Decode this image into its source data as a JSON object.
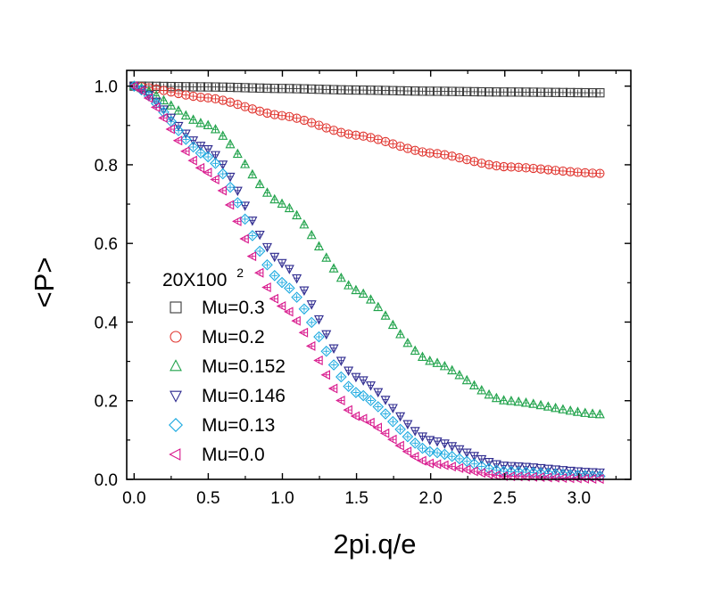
{
  "chart_data": {
    "type": "scatter",
    "title": "",
    "xlabel": "2pi.q/e",
    "ylabel": "<P>",
    "xlim": [
      -0.05,
      3.35
    ],
    "ylim": [
      0.0,
      1.04
    ],
    "x_ticks": [
      0.0,
      0.5,
      1.0,
      1.5,
      2.0,
      2.5,
      3.0
    ],
    "x_tick_labels": [
      "0.0",
      "0.5",
      "1.0",
      "1.5",
      "2.0",
      "2.5",
      "3.0"
    ],
    "y_ticks": [
      0.0,
      0.2,
      0.4,
      0.6,
      0.8,
      1.0
    ],
    "y_tick_labels": [
      "0.0",
      "0.2",
      "0.4",
      "0.6",
      "0.8",
      "1.0"
    ],
    "grid": false,
    "legend_title": "20X100",
    "legend_title_sup": "2",
    "legend_position": "lower-left",
    "x_start": 0.0,
    "x_end": 3.1416,
    "n_points": 64,
    "series": [
      {
        "name": "Mu=0.3",
        "marker": "square",
        "color": "#3a3a3a",
        "x": [
          0,
          0.5,
          1.0,
          1.5,
          2.0,
          2.5,
          3.1416
        ],
        "values": [
          1.0,
          0.998,
          0.994,
          0.99,
          0.987,
          0.985,
          0.983
        ]
      },
      {
        "name": "Mu=0.2",
        "marker": "circle",
        "color": "#e0342e",
        "x": [
          0,
          0.5,
          1.0,
          1.5,
          2.0,
          2.5,
          3.1416
        ],
        "values": [
          1.0,
          0.97,
          0.925,
          0.875,
          0.83,
          0.795,
          0.778
        ]
      },
      {
        "name": "Mu=0.152",
        "marker": "triangle-up",
        "color": "#1fa24a",
        "x": [
          0,
          0.5,
          1.0,
          1.5,
          2.0,
          2.5,
          3.1416
        ],
        "values": [
          1.0,
          0.9,
          0.7,
          0.48,
          0.3,
          0.2,
          0.165
        ]
      },
      {
        "name": "Mu=0.146",
        "marker": "triangle-down",
        "color": "#2e2a8f",
        "x": [
          0,
          0.5,
          1.0,
          1.5,
          2.0,
          2.5,
          3.1416
        ],
        "values": [
          1.0,
          0.84,
          0.55,
          0.26,
          0.1,
          0.035,
          0.018
        ]
      },
      {
        "name": "Mu=0.13",
        "marker": "diamond",
        "color": "#1aa9e0",
        "x": [
          0,
          0.5,
          1.0,
          1.5,
          2.0,
          2.5,
          3.1416
        ],
        "values": [
          1.0,
          0.82,
          0.5,
          0.22,
          0.07,
          0.02,
          0.008
        ]
      },
      {
        "name": "Mu=0.0",
        "marker": "triangle-left",
        "color": "#d8178c",
        "x": [
          0,
          0.5,
          1.0,
          1.5,
          2.0,
          2.5,
          3.1416
        ],
        "values": [
          1.0,
          0.78,
          0.44,
          0.16,
          0.04,
          0.008,
          0.001
        ]
      }
    ]
  }
}
